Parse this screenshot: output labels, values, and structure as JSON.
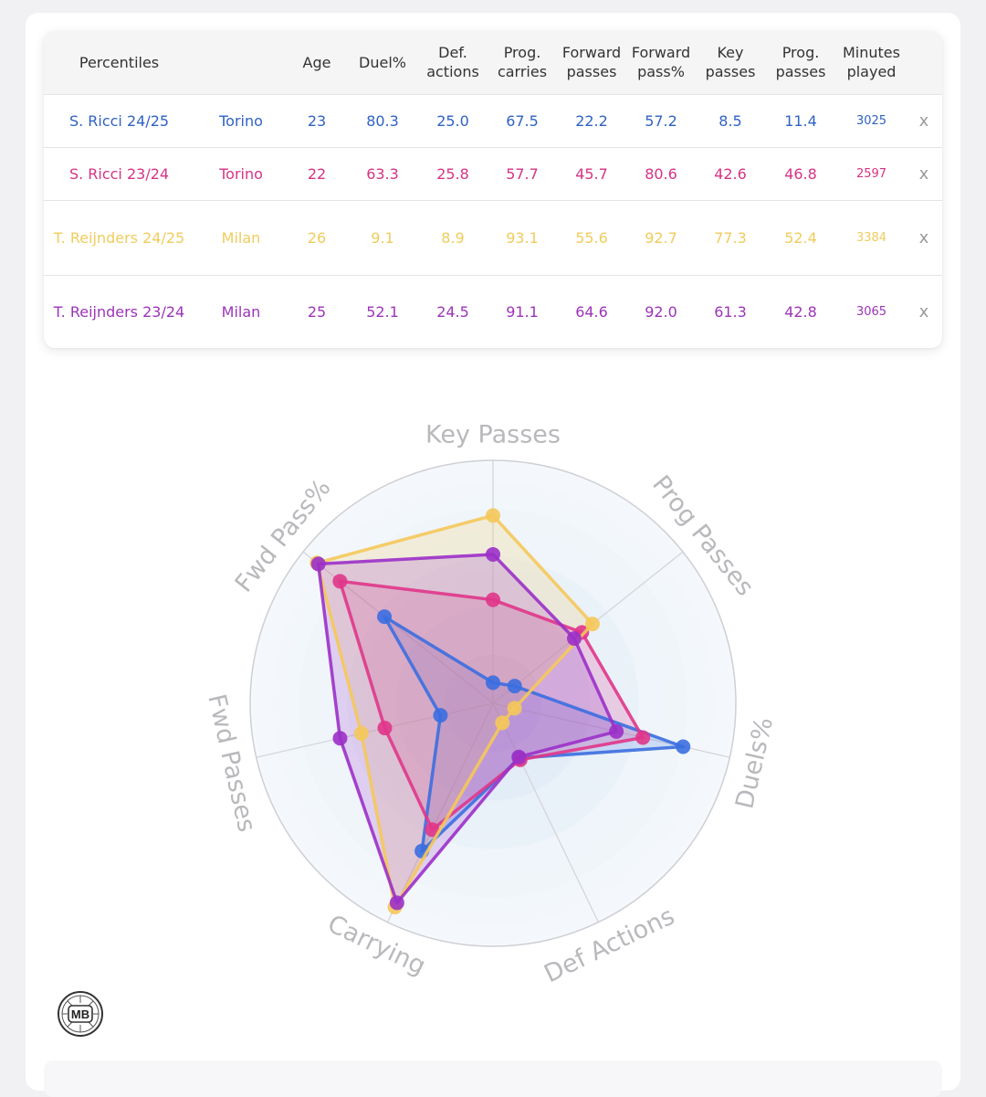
{
  "table": {
    "headers": [
      "Percentiles",
      "",
      "Age",
      "Duel%",
      "Def.\nactions",
      "Prog.\ncarries",
      "Forward\npasses",
      "Forward\npass%",
      "Key\npasses",
      "Prog.\npasses",
      "Minutes\nplayed",
      ""
    ],
    "rows": [
      {
        "player": "S. Ricci 24/25",
        "team": "Torino",
        "age": "23",
        "duel": "80.3",
        "def": "25.0",
        "carries": "67.5",
        "fwd": "22.2",
        "fwdpct": "57.2",
        "key": "8.5",
        "prog": "11.4",
        "minutes": "3025",
        "remove": "x",
        "color": "#2f62c3"
      },
      {
        "player": "S. Ricci 23/24",
        "team": "Torino",
        "age": "22",
        "duel": "63.3",
        "def": "25.8",
        "carries": "57.7",
        "fwd": "45.7",
        "fwdpct": "80.6",
        "key": "42.6",
        "prog": "46.8",
        "minutes": "2597",
        "remove": "x",
        "color": "#d63384"
      },
      {
        "player": "T. Reijnders 24/25",
        "team": "Milan",
        "age": "26",
        "duel": "9.1",
        "def": "8.9",
        "carries": "93.1",
        "fwd": "55.6",
        "fwdpct": "92.7",
        "key": "77.3",
        "prog": "52.4",
        "minutes": "3384",
        "remove": "x",
        "color": "#f0cc5c"
      },
      {
        "player": "T. Reijnders 23/24",
        "team": "Milan",
        "age": "25",
        "duel": "52.1",
        "def": "24.5",
        "carries": "91.1",
        "fwd": "64.6",
        "fwdpct": "92.0",
        "key": "61.3",
        "prog": "42.8",
        "minutes": "3065",
        "remove": "x",
        "color": "#9c34b8"
      }
    ]
  },
  "chart_data": {
    "type": "radar",
    "axes": [
      "Key Passes",
      "Prog Passes",
      "Duels%",
      "Def Actions",
      "Carrying",
      "Fwd Passes",
      "Fwd Pass%"
    ],
    "range": [
      0,
      100
    ],
    "rings": 5,
    "series": [
      {
        "name": "S. Ricci 24/25",
        "color": "#3b6ee0",
        "values": [
          8.5,
          11.4,
          80.3,
          25.0,
          67.5,
          22.2,
          57.2
        ]
      },
      {
        "name": "S. Ricci 23/24",
        "color": "#e0368a",
        "values": [
          42.6,
          46.8,
          63.3,
          25.8,
          57.7,
          45.7,
          80.6
        ]
      },
      {
        "name": "T. Reijnders 24/25",
        "color": "#f5c85a",
        "values": [
          77.3,
          52.4,
          9.1,
          8.9,
          93.1,
          55.6,
          92.7
        ]
      },
      {
        "name": "T. Reijnders 23/24",
        "color": "#9b30c8",
        "values": [
          61.3,
          42.8,
          52.1,
          24.5,
          91.1,
          64.6,
          92.0
        ]
      }
    ]
  },
  "logo": {
    "text": "MB",
    "icon": "soccer-ball-logo-icon"
  }
}
